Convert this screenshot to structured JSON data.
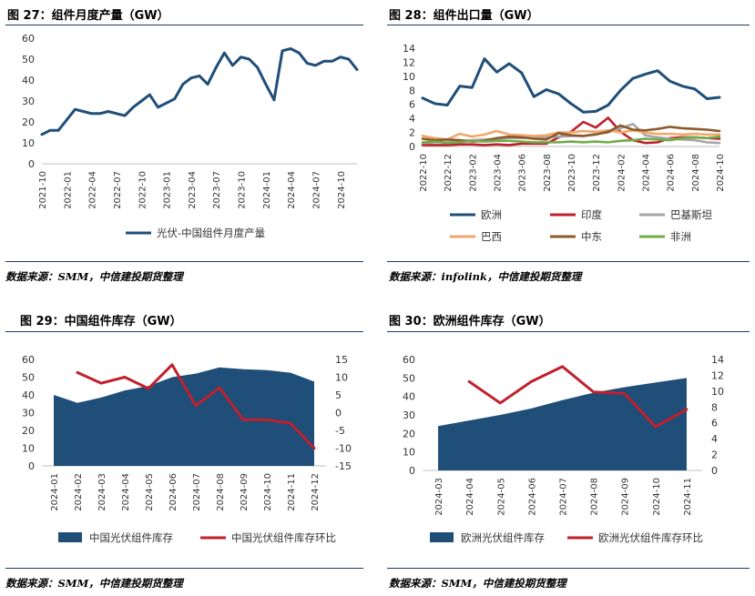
{
  "panels": [
    {
      "title": "图 27：组件月度产量（GW）",
      "source": "数据来源：SMM，中信建投期货整理"
    },
    {
      "title": "图 28：组件出口量（GW）",
      "source": "数据来源：infolink，中信建投期货整理"
    },
    {
      "title": "图 29：中国组件库存（GW）",
      "source": "数据来源：SMM，中信建投期货整理"
    },
    {
      "title": "图 30：欧洲组件库存（GW）",
      "source": "数据来源：SMM，中信建投期货整理"
    }
  ],
  "chart_data": [
    {
      "type": "line",
      "title": "图 27：组件月度产量（GW）",
      "x": [
        "2021-10",
        "2021-11",
        "2021-12",
        "2022-01",
        "2022-02",
        "2022-03",
        "2022-04",
        "2022-05",
        "2022-06",
        "2022-07",
        "2022-08",
        "2022-09",
        "2022-10",
        "2022-11",
        "2022-12",
        "2023-01",
        "2023-02",
        "2023-03",
        "2023-04",
        "2023-05",
        "2023-06",
        "2023-07",
        "2023-08",
        "2023-09",
        "2023-10",
        "2023-11",
        "2023-12",
        "2024-01",
        "2024-02",
        "2024-03",
        "2024-04",
        "2024-05",
        "2024-06",
        "2024-07",
        "2024-08",
        "2024-09",
        "2024-10",
        "2024-11",
        "2024-12"
      ],
      "tick_labels": [
        "2021-10",
        "2022-01",
        "2022-04",
        "2022-07",
        "2022-10",
        "2023-01",
        "2023-04",
        "2023-07",
        "2023-10",
        "2024-01",
        "2024-04",
        "2024-07",
        "2024-10"
      ],
      "series": [
        {
          "name": "光伏-中国组件月度产量",
          "color": "#1f4e79",
          "values": [
            14,
            16,
            16,
            21,
            26,
            25,
            24,
            24,
            25,
            24,
            23,
            27,
            30,
            33,
            27,
            29,
            31,
            38,
            41,
            42,
            38,
            46,
            53,
            47,
            51,
            50,
            46,
            38,
            30.5,
            54,
            55,
            53,
            48,
            47,
            49,
            49,
            51,
            50,
            45
          ]
        }
      ],
      "ylim": [
        0,
        60
      ],
      "yticks": [
        0,
        10,
        20,
        30,
        40,
        50,
        60
      ],
      "legend": "bottom"
    },
    {
      "type": "line",
      "title": "图 28：组件出口量（GW）",
      "x": [
        "2022-10",
        "2022-11",
        "2022-12",
        "2023-01",
        "2023-02",
        "2023-03",
        "2023-04",
        "2023-05",
        "2023-06",
        "2023-07",
        "2023-08",
        "2023-09",
        "2023-10",
        "2023-11",
        "2023-12",
        "2024-01",
        "2024-02",
        "2024-03",
        "2024-04",
        "2024-05",
        "2024-06",
        "2024-07",
        "2024-08",
        "2024-09",
        "2024-10"
      ],
      "tick_labels": [
        "2022-10",
        "2022-12",
        "2023-02",
        "2023-04",
        "2023-06",
        "2023-08",
        "2023-10",
        "2023-12",
        "2024-02",
        "2024-04",
        "2024-06",
        "2024-08",
        "2024-10"
      ],
      "series": [
        {
          "name": "欧洲",
          "color": "#1f4e79",
          "values": [
            6.9,
            6.1,
            5.9,
            8.6,
            8.4,
            12.5,
            10.6,
            11.8,
            10.5,
            7.1,
            8.1,
            7.5,
            6.1,
            4.9,
            5,
            5.9,
            8,
            9.7,
            10.3,
            10.8,
            9.3,
            8.6,
            8.2,
            6.8,
            7
          ]
        },
        {
          "name": "印度",
          "color": "#c0202c",
          "values": [
            0.2,
            0.2,
            0.2,
            0.3,
            0.3,
            0.2,
            0.3,
            0.2,
            0.4,
            0.4,
            0.4,
            1.3,
            2.1,
            3.5,
            2.7,
            4.1,
            2.1,
            0.9,
            0.5,
            0.6,
            1.2,
            1.3,
            1.3,
            1.2,
            1.1
          ]
        },
        {
          "name": "巴基斯坦",
          "color": "#a6a6a6",
          "values": [
            0.5,
            0.6,
            0.6,
            0.8,
            0.9,
            1,
            1.1,
            1.2,
            1.2,
            1.3,
            1.3,
            1.4,
            1.5,
            1.5,
            1.8,
            2,
            2.6,
            3.2,
            1.6,
            1.3,
            1.1,
            1,
            0.9,
            0.6,
            0.5
          ]
        },
        {
          "name": "巴西",
          "color": "#f4a66a",
          "values": [
            1.5,
            1.2,
            1,
            1.8,
            1.4,
            1.7,
            2.2,
            1.7,
            1.6,
            1.5,
            1.6,
            2,
            2,
            2.2,
            2.1,
            2.3,
            2,
            2.3,
            2,
            1.8,
            1.8,
            1.7,
            1.8,
            1.7,
            1.7
          ]
        },
        {
          "name": "中东",
          "color": "#8b5a2b",
          "values": [
            1.1,
            0.9,
            1,
            0.9,
            0.7,
            0.8,
            1.2,
            1.4,
            1.3,
            1.1,
            1,
            1.9,
            1.6,
            1.5,
            1.7,
            2.1,
            3,
            2.4,
            2.3,
            2.5,
            2.8,
            2.6,
            2.5,
            2.4,
            2.2
          ]
        },
        {
          "name": "非洲",
          "color": "#6fad47",
          "values": [
            0.6,
            0.7,
            0.5,
            0.6,
            0.8,
            0.7,
            0.8,
            0.8,
            0.7,
            0.6,
            0.6,
            0.6,
            0.7,
            0.6,
            0.7,
            0.6,
            0.8,
            0.9,
            1.1,
            1,
            0.9,
            1.2,
            1.3,
            1.2,
            1.4
          ]
        }
      ],
      "ylim": [
        0,
        14
      ],
      "yticks": [
        0,
        2,
        4,
        6,
        8,
        10,
        12,
        14
      ],
      "legend": "bottom"
    },
    {
      "type": "area",
      "title": "图 29：中国组件库存（GW）",
      "x": [
        "2024-01",
        "2024-02",
        "2024-03",
        "2024-04",
        "2024-05",
        "2024-06",
        "2024-07",
        "2024-08",
        "2024-09",
        "2024-10",
        "2024-11",
        "2024-12"
      ],
      "series": [
        {
          "name": "中国光伏组件库存",
          "kind": "area",
          "axis": "left",
          "color": "#1f4e79",
          "values": [
            40,
            35.5,
            38.5,
            42.5,
            45,
            50,
            52,
            55.5,
            54.5,
            54,
            52.5,
            47.5
          ]
        },
        {
          "name": "中国光伏组件库存环比",
          "kind": "line",
          "axis": "right",
          "color": "#c0202c",
          "values": [
            null,
            11.3,
            8.3,
            10,
            6.8,
            13.5,
            2,
            7,
            -2,
            -2,
            -3,
            -10
          ]
        }
      ],
      "ylim": [
        0,
        60
      ],
      "yticks": [
        0,
        10,
        20,
        30,
        40,
        50,
        60
      ],
      "y2lim": [
        -15,
        15
      ],
      "y2ticks": [
        -15,
        -10,
        -5,
        0,
        5,
        10,
        15
      ],
      "legend": "bottom"
    },
    {
      "type": "area",
      "title": "图 30：欧洲组件库存（GW）",
      "x": [
        "2024-03",
        "2024-04",
        "2024-05",
        "2024-06",
        "2024-07",
        "2024-08",
        "2024-09",
        "2024-10",
        "2024-11"
      ],
      "series": [
        {
          "name": "欧洲光伏组件库存",
          "kind": "area",
          "axis": "left",
          "color": "#1f4e79",
          "values": [
            24,
            27,
            30,
            33.5,
            38,
            42,
            45,
            47.5,
            50
          ]
        },
        {
          "name": "欧洲光伏组件库存环比",
          "kind": "line",
          "axis": "right",
          "color": "#c0202c",
          "values": [
            null,
            11.2,
            8.5,
            11.2,
            13.1,
            9.9,
            9.7,
            5.5,
            7.7
          ]
        }
      ],
      "ylim": [
        0,
        60
      ],
      "yticks": [
        0,
        10,
        20,
        30,
        40,
        50,
        60
      ],
      "y2lim": [
        0,
        14
      ],
      "y2ticks": [
        0,
        2,
        4,
        6,
        8,
        10,
        12,
        14
      ],
      "legend": "bottom"
    }
  ]
}
